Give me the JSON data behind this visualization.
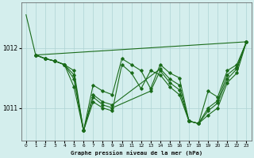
{
  "background_color": "#d4eeed",
  "line_color": "#1a6b1a",
  "grid_color": "#aed4d4",
  "xlabel": "Graphe pression niveau de la mer (hPa)",
  "yticks": [
    1011,
    1012
  ],
  "xticks": [
    0,
    1,
    2,
    3,
    4,
    5,
    6,
    7,
    8,
    9,
    10,
    11,
    12,
    13,
    14,
    15,
    16,
    17,
    18,
    19,
    20,
    21,
    22,
    23
  ],
  "xlim": [
    -0.5,
    23.5
  ],
  "ylim": [
    1010.45,
    1012.75
  ],
  "curves": [
    {
      "x": [
        0,
        1,
        23
      ],
      "y": [
        1012.55,
        1011.88,
        1012.1
      ],
      "has_markers": false
    },
    {
      "x": [
        1,
        2,
        3,
        4,
        5,
        6,
        7,
        8,
        9,
        10,
        11,
        12,
        13,
        14,
        15,
        16,
        17,
        18,
        19,
        20,
        21,
        22,
        23
      ],
      "y": [
        1011.88,
        1011.82,
        1011.78,
        1011.72,
        1011.55,
        1010.62,
        1011.38,
        1011.28,
        1011.22,
        1011.82,
        1011.72,
        1011.62,
        1011.32,
        1011.72,
        1011.58,
        1011.5,
        1010.78,
        1010.74,
        1011.28,
        1011.18,
        1011.62,
        1011.72,
        1012.1
      ],
      "has_markers": true
    },
    {
      "x": [
        1,
        2,
        3,
        4,
        5,
        6,
        7,
        8,
        9,
        14,
        15,
        16,
        17,
        18,
        19,
        20,
        21,
        22,
        23
      ],
      "y": [
        1011.88,
        1011.82,
        1011.78,
        1011.72,
        1011.35,
        1010.62,
        1011.22,
        1011.1,
        1011.05,
        1011.65,
        1011.48,
        1011.38,
        1010.78,
        1010.74,
        1011.0,
        1011.12,
        1011.55,
        1011.68,
        1012.1
      ],
      "has_markers": true
    },
    {
      "x": [
        1,
        2,
        3,
        4,
        5,
        6,
        7,
        8,
        9,
        13,
        14,
        15,
        16,
        17,
        18,
        19,
        20,
        21,
        22,
        23
      ],
      "y": [
        1011.88,
        1011.82,
        1011.78,
        1011.72,
        1011.48,
        1010.62,
        1011.18,
        1011.05,
        1011.0,
        1011.28,
        1011.62,
        1011.42,
        1011.3,
        1010.78,
        1010.74,
        1010.95,
        1011.08,
        1011.48,
        1011.65,
        1012.1
      ],
      "has_markers": true
    },
    {
      "x": [
        1,
        2,
        3,
        4,
        5,
        6,
        7,
        8,
        9,
        10,
        11,
        12,
        13,
        14,
        15,
        16,
        17,
        18,
        19,
        20,
        21,
        22,
        23
      ],
      "y": [
        1011.88,
        1011.82,
        1011.78,
        1011.72,
        1011.62,
        1010.62,
        1011.1,
        1011.0,
        1010.95,
        1011.72,
        1011.58,
        1011.32,
        1011.62,
        1011.55,
        1011.35,
        1011.22,
        1010.78,
        1010.74,
        1010.88,
        1011.0,
        1011.42,
        1011.58,
        1012.1
      ],
      "has_markers": true
    }
  ]
}
